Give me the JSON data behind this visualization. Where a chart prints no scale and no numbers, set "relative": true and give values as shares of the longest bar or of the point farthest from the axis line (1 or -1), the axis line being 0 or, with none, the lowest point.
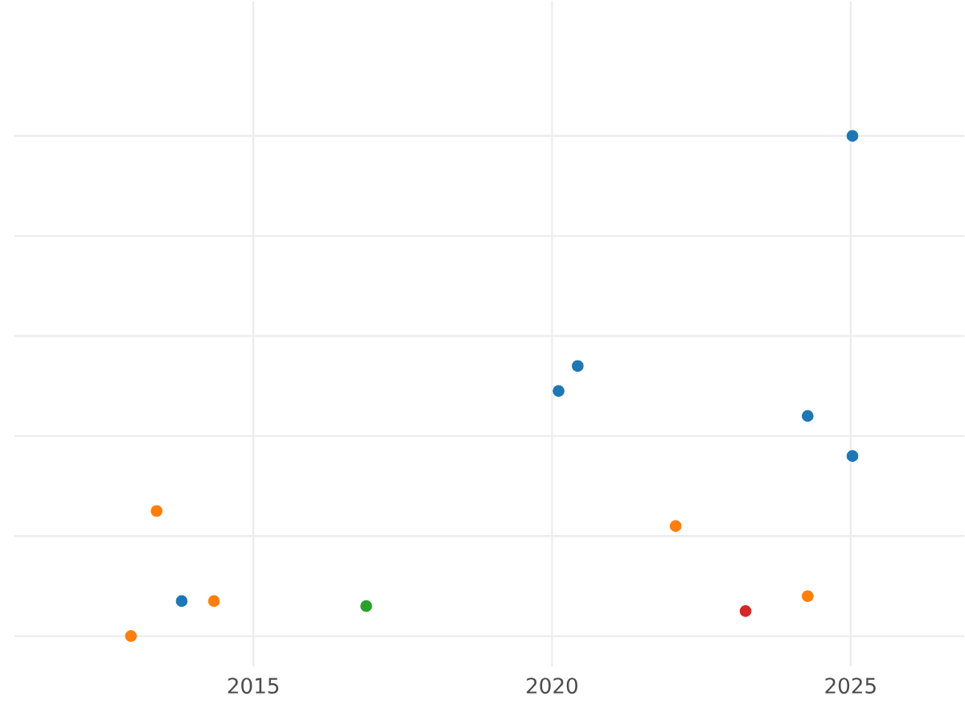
{
  "chart_data": {
    "type": "scatter",
    "relative": true,
    "grid": true,
    "xlim": [
      2011,
      2026.9
    ],
    "xticks": [
      2015,
      2020,
      2025
    ],
    "series": [
      {
        "color": "#ff7f0e",
        "x": [
          2012.95,
          2013.38,
          2014.34,
          2022.07,
          2024.28
        ],
        "values": [
          0,
          0.25,
          0.07,
          0.22,
          0.08
        ]
      },
      {
        "color": "#1f77b4",
        "x": [
          2013.8,
          2020.11,
          2020.43,
          2024.28,
          2025.03,
          2025.03
        ],
        "values": [
          0.07,
          0.49,
          0.54,
          0.44,
          0.36,
          1
        ]
      },
      {
        "color": "#2ca02c",
        "x": [
          2016.89
        ],
        "values": [
          0.06
        ]
      },
      {
        "color": "#d62728",
        "x": [
          2023.24
        ],
        "values": [
          0.05
        ]
      }
    ]
  }
}
